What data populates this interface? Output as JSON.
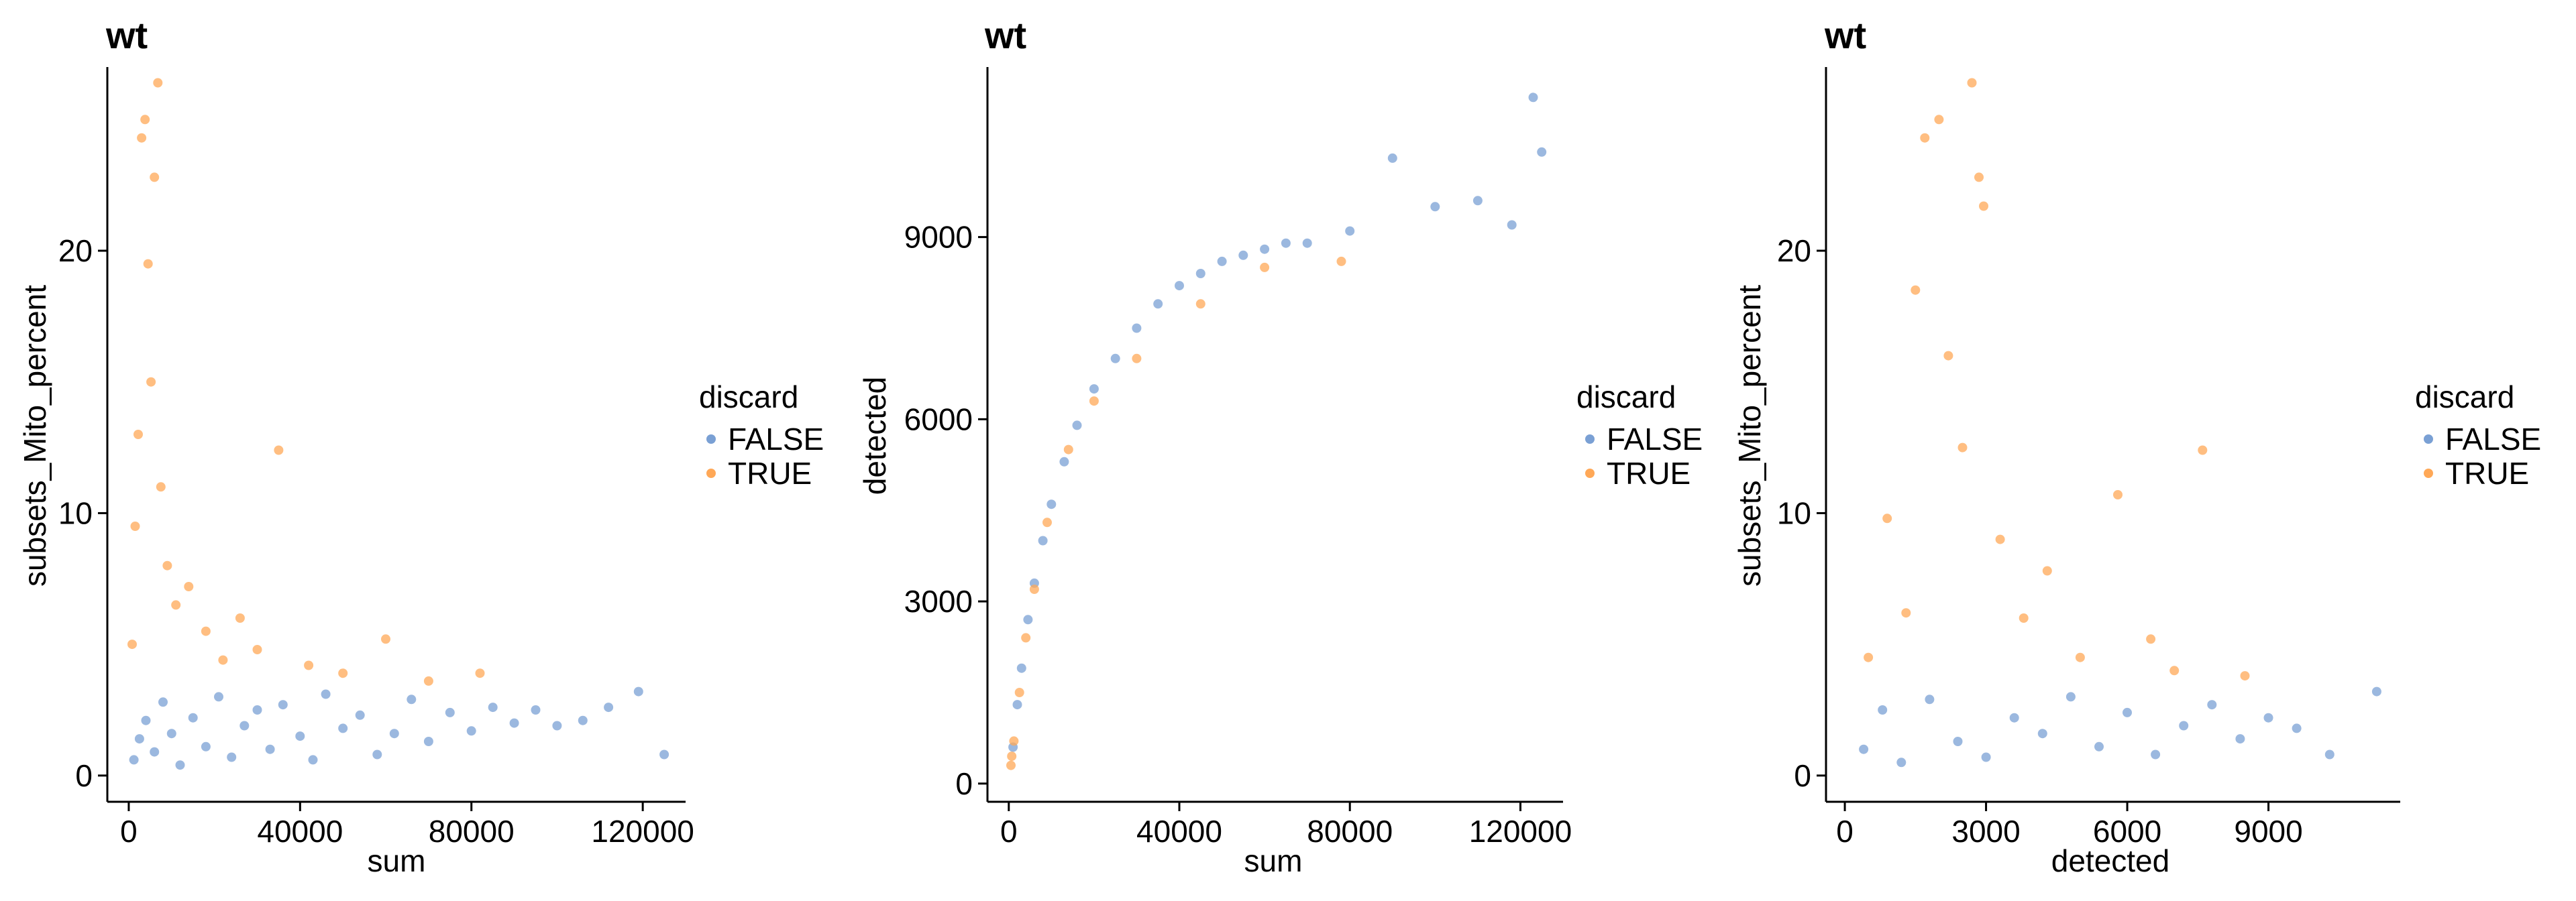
{
  "chart_data": [
    {
      "type": "scatter",
      "title": "wt",
      "xlabel": "sum",
      "ylabel": "subsets_Mito_percent",
      "xlim": [
        -5000,
        130000
      ],
      "ylim": [
        -1,
        27
      ],
      "xticks": [
        0,
        40000,
        80000,
        120000
      ],
      "xtick_labels": [
        "0",
        "40000",
        "80000",
        "120000"
      ],
      "yticks": [
        0,
        10,
        20
      ],
      "ytick_labels": [
        "0",
        "10",
        "20"
      ],
      "grid": false,
      "legend": {
        "title": "discard",
        "position": "right",
        "entries": [
          "FALSE",
          "TRUE"
        ]
      },
      "series": [
        {
          "name": "FALSE",
          "color": "#7aa0d4",
          "points": [
            [
              1200,
              0.6
            ],
            [
              2500,
              1.4
            ],
            [
              4000,
              2.1
            ],
            [
              6000,
              0.9
            ],
            [
              8000,
              2.8
            ],
            [
              10000,
              1.6
            ],
            [
              12000,
              0.4
            ],
            [
              15000,
              2.2
            ],
            [
              18000,
              1.1
            ],
            [
              21000,
              3.0
            ],
            [
              24000,
              0.7
            ],
            [
              27000,
              1.9
            ],
            [
              30000,
              2.5
            ],
            [
              33000,
              1.0
            ],
            [
              36000,
              2.7
            ],
            [
              40000,
              1.5
            ],
            [
              43000,
              0.6
            ],
            [
              46000,
              3.1
            ],
            [
              50000,
              1.8
            ],
            [
              54000,
              2.3
            ],
            [
              58000,
              0.8
            ],
            [
              62000,
              1.6
            ],
            [
              66000,
              2.9
            ],
            [
              70000,
              1.3
            ],
            [
              75000,
              2.4
            ],
            [
              80000,
              1.7
            ],
            [
              85000,
              2.6
            ],
            [
              90000,
              2.0
            ],
            [
              95000,
              2.5
            ],
            [
              100000,
              1.9
            ],
            [
              106000,
              2.1
            ],
            [
              112000,
              2.6
            ],
            [
              119000,
              3.2
            ],
            [
              125000,
              0.8
            ]
          ]
        },
        {
          "name": "TRUE",
          "color": "#ffa857",
          "points": [
            [
              800,
              5.0
            ],
            [
              1500,
              9.5
            ],
            [
              2200,
              13.0
            ],
            [
              3000,
              24.3
            ],
            [
              3800,
              25.0
            ],
            [
              4500,
              19.5
            ],
            [
              5200,
              15.0
            ],
            [
              6000,
              22.8
            ],
            [
              6800,
              26.4
            ],
            [
              7500,
              11.0
            ],
            [
              9000,
              8.0
            ],
            [
              11000,
              6.5
            ],
            [
              14000,
              7.2
            ],
            [
              18000,
              5.5
            ],
            [
              22000,
              4.4
            ],
            [
              26000,
              6.0
            ],
            [
              30000,
              4.8
            ],
            [
              35000,
              12.4
            ],
            [
              42000,
              4.2
            ],
            [
              50000,
              3.9
            ],
            [
              60000,
              5.2
            ],
            [
              70000,
              3.6
            ],
            [
              82000,
              3.9
            ]
          ]
        }
      ]
    },
    {
      "type": "scatter",
      "title": "wt",
      "xlabel": "sum",
      "ylabel": "detected",
      "xlim": [
        -5000,
        130000
      ],
      "ylim": [
        -300,
        11800
      ],
      "xticks": [
        0,
        40000,
        80000,
        120000
      ],
      "xtick_labels": [
        "0",
        "40000",
        "80000",
        "120000"
      ],
      "yticks": [
        0,
        3000,
        6000,
        9000
      ],
      "ytick_labels": [
        "0",
        "3000",
        "6000",
        "9000"
      ],
      "grid": false,
      "legend": {
        "title": "discard",
        "position": "right",
        "entries": [
          "FALSE",
          "TRUE"
        ]
      },
      "series": [
        {
          "name": "FALSE",
          "color": "#7aa0d4",
          "points": [
            [
              1000,
              600
            ],
            [
              2000,
              1300
            ],
            [
              3000,
              1900
            ],
            [
              4500,
              2700
            ],
            [
              6000,
              3300
            ],
            [
              8000,
              4000
            ],
            [
              10000,
              4600
            ],
            [
              13000,
              5300
            ],
            [
              16000,
              5900
            ],
            [
              20000,
              6500
            ],
            [
              25000,
              7000
            ],
            [
              30000,
              7500
            ],
            [
              35000,
              7900
            ],
            [
              40000,
              8200
            ],
            [
              45000,
              8400
            ],
            [
              50000,
              8600
            ],
            [
              55000,
              8700
            ],
            [
              60000,
              8800
            ],
            [
              65000,
              8900
            ],
            [
              70000,
              8900
            ],
            [
              80000,
              9100
            ],
            [
              90000,
              10300
            ],
            [
              100000,
              9500
            ],
            [
              110000,
              9600
            ],
            [
              118000,
              9200
            ],
            [
              123000,
              11300
            ],
            [
              125000,
              10400
            ]
          ]
        },
        {
          "name": "TRUE",
          "color": "#ffa857",
          "points": [
            [
              500,
              300
            ],
            [
              700,
              450
            ],
            [
              1200,
              700
            ],
            [
              2500,
              1500
            ],
            [
              4000,
              2400
            ],
            [
              6000,
              3200
            ],
            [
              9000,
              4300
            ],
            [
              14000,
              5500
            ],
            [
              20000,
              6300
            ],
            [
              30000,
              7000
            ],
            [
              45000,
              7900
            ],
            [
              60000,
              8500
            ],
            [
              78000,
              8600
            ]
          ]
        }
      ]
    },
    {
      "type": "scatter",
      "title": "wt",
      "xlabel": "detected",
      "ylabel": "subsets_Mito_percent",
      "xlim": [
        -400,
        11800
      ],
      "ylim": [
        -1,
        27
      ],
      "xticks": [
        0,
        3000,
        6000,
        9000
      ],
      "xtick_labels": [
        "0",
        "3000",
        "6000",
        "9000"
      ],
      "yticks": [
        0,
        10,
        20
      ],
      "ytick_labels": [
        "0",
        "10",
        "20"
      ],
      "grid": false,
      "legend": {
        "title": "discard",
        "position": "right",
        "entries": [
          "FALSE",
          "TRUE"
        ]
      },
      "series": [
        {
          "name": "FALSE",
          "color": "#7aa0d4",
          "points": [
            [
              400,
              1.0
            ],
            [
              800,
              2.5
            ],
            [
              1200,
              0.5
            ],
            [
              1800,
              2.9
            ],
            [
              2400,
              1.3
            ],
            [
              3000,
              0.7
            ],
            [
              3600,
              2.2
            ],
            [
              4200,
              1.6
            ],
            [
              4800,
              3.0
            ],
            [
              5400,
              1.1
            ],
            [
              6000,
              2.4
            ],
            [
              6600,
              0.8
            ],
            [
              7200,
              1.9
            ],
            [
              7800,
              2.7
            ],
            [
              8400,
              1.4
            ],
            [
              9000,
              2.2
            ],
            [
              9600,
              1.8
            ],
            [
              10300,
              0.8
            ],
            [
              11300,
              3.2
            ]
          ]
        },
        {
          "name": "TRUE",
          "color": "#ffa857",
          "points": [
            [
              500,
              4.5
            ],
            [
              900,
              9.8
            ],
            [
              1300,
              6.2
            ],
            [
              1500,
              18.5
            ],
            [
              1700,
              24.3
            ],
            [
              2000,
              25.0
            ],
            [
              2200,
              16.0
            ],
            [
              2500,
              12.5
            ],
            [
              2700,
              26.4
            ],
            [
              2850,
              22.8
            ],
            [
              2950,
              21.7
            ],
            [
              3300,
              9.0
            ],
            [
              3800,
              6.0
            ],
            [
              4300,
              7.8
            ],
            [
              5000,
              4.5
            ],
            [
              5800,
              10.7
            ],
            [
              6500,
              5.2
            ],
            [
              7000,
              4.0
            ],
            [
              7600,
              12.4
            ],
            [
              8500,
              3.8
            ]
          ]
        }
      ]
    }
  ]
}
